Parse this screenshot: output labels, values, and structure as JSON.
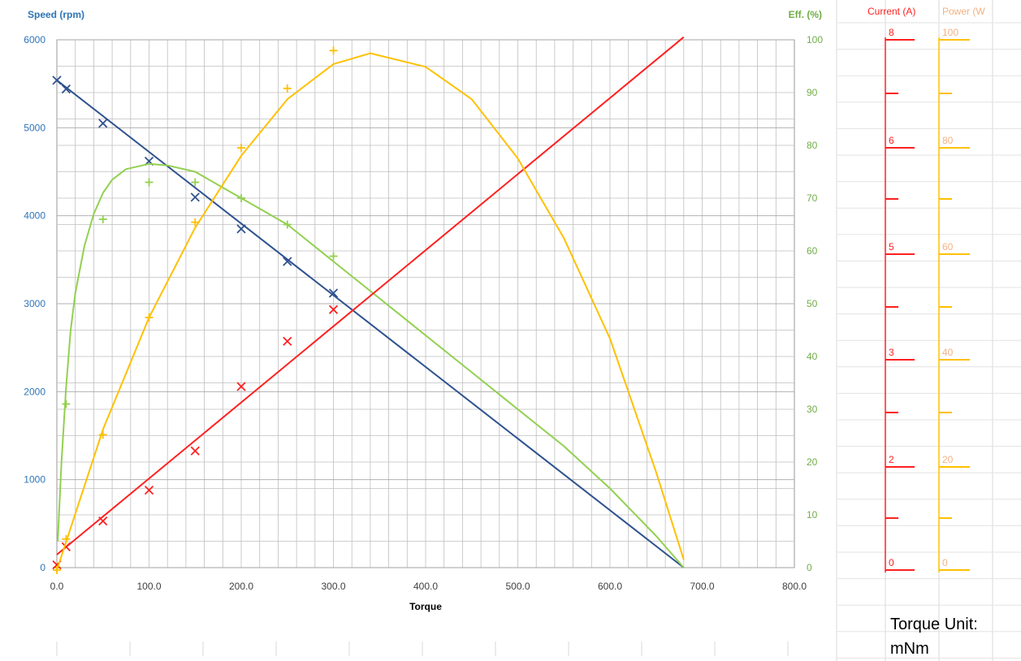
{
  "chart_data": {
    "type": "line",
    "xlabel": "Torque",
    "x_ticks": [
      "0.0",
      "100.0",
      "200.0",
      "300.0",
      "400.0",
      "500.0",
      "600.0",
      "700.0",
      "800.0"
    ],
    "xlim": [
      0,
      800
    ],
    "left_axis": {
      "label": "Speed (rpm)",
      "ticks": [
        "0",
        "1000",
        "2000",
        "3000",
        "4000",
        "5000",
        "6000"
      ],
      "ylim": [
        0,
        6000
      ],
      "color": "#2e75b6"
    },
    "right_axis": {
      "label": "Eff. (%)",
      "ticks": [
        "0",
        "10",
        "20",
        "30",
        "40",
        "50",
        "60",
        "70",
        "80",
        "90",
        "100"
      ],
      "ylim": [
        0,
        100
      ],
      "color": "#70ad47"
    },
    "series": [
      {
        "name": "Speed (rpm)",
        "color": "#2f528f",
        "axis": "left",
        "curve": [
          [
            0,
            5540
          ],
          [
            680,
            0
          ]
        ],
        "markers": [
          [
            0,
            5540
          ],
          [
            10,
            5440
          ],
          [
            50,
            5050
          ],
          [
            100,
            4620
          ],
          [
            150,
            4210
          ],
          [
            200,
            3850
          ],
          [
            250,
            3480
          ],
          [
            300,
            3120
          ]
        ],
        "marker": "x"
      },
      {
        "name": "Eff. (%)",
        "color": "#92d050",
        "axis": "right",
        "curve": [
          [
            1,
            5
          ],
          [
            5,
            20
          ],
          [
            10,
            34
          ],
          [
            15,
            45
          ],
          [
            20,
            52
          ],
          [
            30,
            61
          ],
          [
            40,
            67
          ],
          [
            50,
            71
          ],
          [
            60,
            73.5
          ],
          [
            75,
            75.5
          ],
          [
            100,
            76.5
          ],
          [
            120,
            76.2
          ],
          [
            150,
            75
          ],
          [
            200,
            70
          ],
          [
            250,
            65
          ],
          [
            300,
            58
          ],
          [
            350,
            51
          ],
          [
            400,
            44
          ],
          [
            450,
            37
          ],
          [
            500,
            30
          ],
          [
            550,
            23
          ],
          [
            600,
            15
          ],
          [
            650,
            6
          ],
          [
            680,
            0
          ]
        ],
        "markers": [
          [
            0,
            0
          ],
          [
            10,
            31
          ],
          [
            50,
            66
          ],
          [
            100,
            73
          ],
          [
            150,
            73
          ],
          [
            200,
            70
          ],
          [
            250,
            65
          ],
          [
            300,
            59
          ]
        ],
        "marker": "+"
      },
      {
        "name": "Current (A)",
        "color": "#ff2020",
        "axis": "current",
        "curve": [
          [
            0,
            0.3
          ],
          [
            680,
            8.05
          ]
        ],
        "markers": [
          [
            0,
            0.1
          ],
          [
            10,
            0.45
          ],
          [
            50,
            0.95
          ],
          [
            100,
            1.55
          ],
          [
            150,
            2.15
          ],
          [
            200,
            2.75
          ],
          [
            250,
            3.35
          ],
          [
            300,
            3.95
          ]
        ],
        "marker": "x"
      },
      {
        "name": "Power (W)",
        "color": "#ffc000",
        "axis": "power",
        "curve": [
          [
            0,
            0
          ],
          [
            50,
            27
          ],
          [
            100,
            48
          ],
          [
            150,
            65
          ],
          [
            200,
            78.5
          ],
          [
            250,
            89
          ],
          [
            300,
            95.5
          ],
          [
            340,
            97.5
          ],
          [
            400,
            95
          ],
          [
            450,
            89
          ],
          [
            500,
            78
          ],
          [
            550,
            63
          ],
          [
            600,
            44
          ],
          [
            650,
            19
          ],
          [
            680,
            2
          ]
        ],
        "markers": [
          [
            0,
            0
          ],
          [
            10,
            6
          ],
          [
            50,
            26
          ],
          [
            100,
            48
          ],
          [
            150,
            66
          ],
          [
            200,
            80
          ],
          [
            250,
            91
          ],
          [
            300,
            98
          ]
        ],
        "marker": "+"
      }
    ],
    "current_axis": {
      "label": "Current (A)",
      "labels": [
        {
          "v": 0,
          "t": "0"
        },
        {
          "v": 2,
          "t": "2"
        },
        {
          "v": 3,
          "t": "3"
        },
        {
          "v": 5,
          "t": "5"
        },
        {
          "v": 6,
          "t": "6"
        },
        {
          "v": 8,
          "t": "8"
        }
      ]
    },
    "power_axis": {
      "label": "Power (W",
      "labels": [
        {
          "v": 0,
          "t": "0"
        },
        {
          "v": 20,
          "t": "20"
        },
        {
          "v": 40,
          "t": "40"
        },
        {
          "v": 60,
          "t": "60"
        },
        {
          "v": 80,
          "t": "80"
        },
        {
          "v": 100,
          "t": "100"
        }
      ]
    },
    "note_line1": "Torque Unit:",
    "note_line2": "mNm",
    "grid": true
  }
}
